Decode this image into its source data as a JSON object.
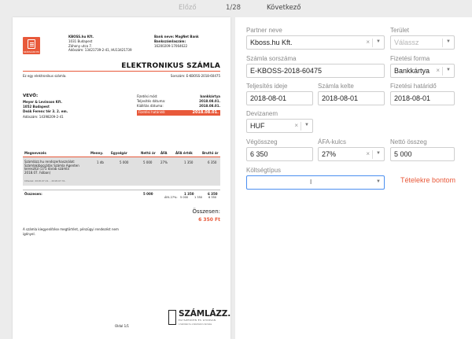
{
  "nav": {
    "prev": "Előző",
    "counter": "1/28",
    "next": "Következő"
  },
  "invoice": {
    "logo_text": "SZÁMLÁZZ.HU",
    "seller": {
      "name": "KBOSS.hu Kft.",
      "addr1": "1031 Budapest",
      "addr2": "Záhony utca 7.",
      "tax": "Adószám: 13421739-2-41, HU13421739"
    },
    "bank": {
      "name": "Bank neve: MagNet Bank",
      "label": "Bankszámlaszám:",
      "account": "16200209-17064622"
    },
    "title": "ELEKTRONIKUS SZÁMLA",
    "electronic_note": "Ez egy elektronikus számla.",
    "number_line": "Sorszám: E-KBOSS-2018-60475",
    "buyer": {
      "heading": "VEVŐ:",
      "name": "Meyer & Levinson Kft.",
      "city": "1052 Budapest",
      "street": "Deák Ferenc tér 3. 2. em.",
      "tax": "Adószám: 14398209-2-41"
    },
    "meta": [
      {
        "label": "Fizetési mód:",
        "value": "bankkártya"
      },
      {
        "label": "Teljesítés dátuma:",
        "value": "2018.08.01."
      },
      {
        "label": "Kiállítás dátuma:",
        "value": "2018.08.01."
      }
    ],
    "due": {
      "label": "Fizetési határidő:",
      "value": "2018.08.01."
    },
    "table": {
      "headers": [
        "Megnevezés",
        "Menny.",
        "Egységár",
        "Nettó ár",
        "ÁFA",
        "ÁFA érték",
        "Bruttó ár"
      ],
      "row": {
        "desc_lines": [
          "Számlázz.hu rendszerhasználat:",
          "Számlakibocsátás Számla Agenten",
          "keresztül (175 darab számla",
          "2018.07. hóban)"
        ],
        "note": "Időszak: 2018.07.01. - 2018.07.31.",
        "qty": "1 db",
        "unit_price": "5 000",
        "net": "5 000",
        "vat": "27%",
        "vat_value": "1 350",
        "gross": "6 350"
      },
      "sum": {
        "label": "Összesen:",
        "net": "5 000",
        "vat_value": "1 350",
        "gross": "6 350"
      },
      "vat_line": {
        "label": "ÁFA 27%:",
        "net": "5 000",
        "vat_value": "1 350",
        "gross": "6 350"
      }
    },
    "total_label": "Összesen:",
    "total_value": "6 350 Ft",
    "footer": "A számla kiegyenlítése megtörtént, pénzügyi rendezést nem igényel.",
    "page": "Oldal 1/1",
    "brand": {
      "name": "SZÁMLÁZZ.HU",
      "slogan": "EGYSZERŰEN ÉS GYORSAN",
      "sub": "A Számlázz.hu a Számlázz.hu terméke"
    }
  },
  "form": {
    "partner": {
      "label": "Partner neve",
      "value": "Kboss.hu Kft."
    },
    "area": {
      "label": "Terület",
      "placeholder": "Válassz"
    },
    "invoice_no": {
      "label": "Számla sorszáma",
      "value": "E-KBOSS-2018-60475"
    },
    "payment": {
      "label": "Fizetési forma",
      "value": "Bankkártya"
    },
    "fulfillment": {
      "label": "Teljesítés ideje",
      "value": "2018-08-01"
    },
    "issued": {
      "label": "Számla kelte",
      "value": "2018-08-01"
    },
    "deadline": {
      "label": "Fizetési határidő",
      "value": "2018-08-01"
    },
    "currency": {
      "label": "Devizanem",
      "value": "HUF"
    },
    "gross": {
      "label": "Végösszeg",
      "value": "6 350"
    },
    "vat_rate": {
      "label": "ÁFA-kulcs",
      "value": "27%"
    },
    "net": {
      "label": "Nettó összeg",
      "value": "5 000"
    },
    "cost_type": {
      "label": "Költségtípus",
      "value": ""
    },
    "split_link": "Tételekre bontom"
  }
}
